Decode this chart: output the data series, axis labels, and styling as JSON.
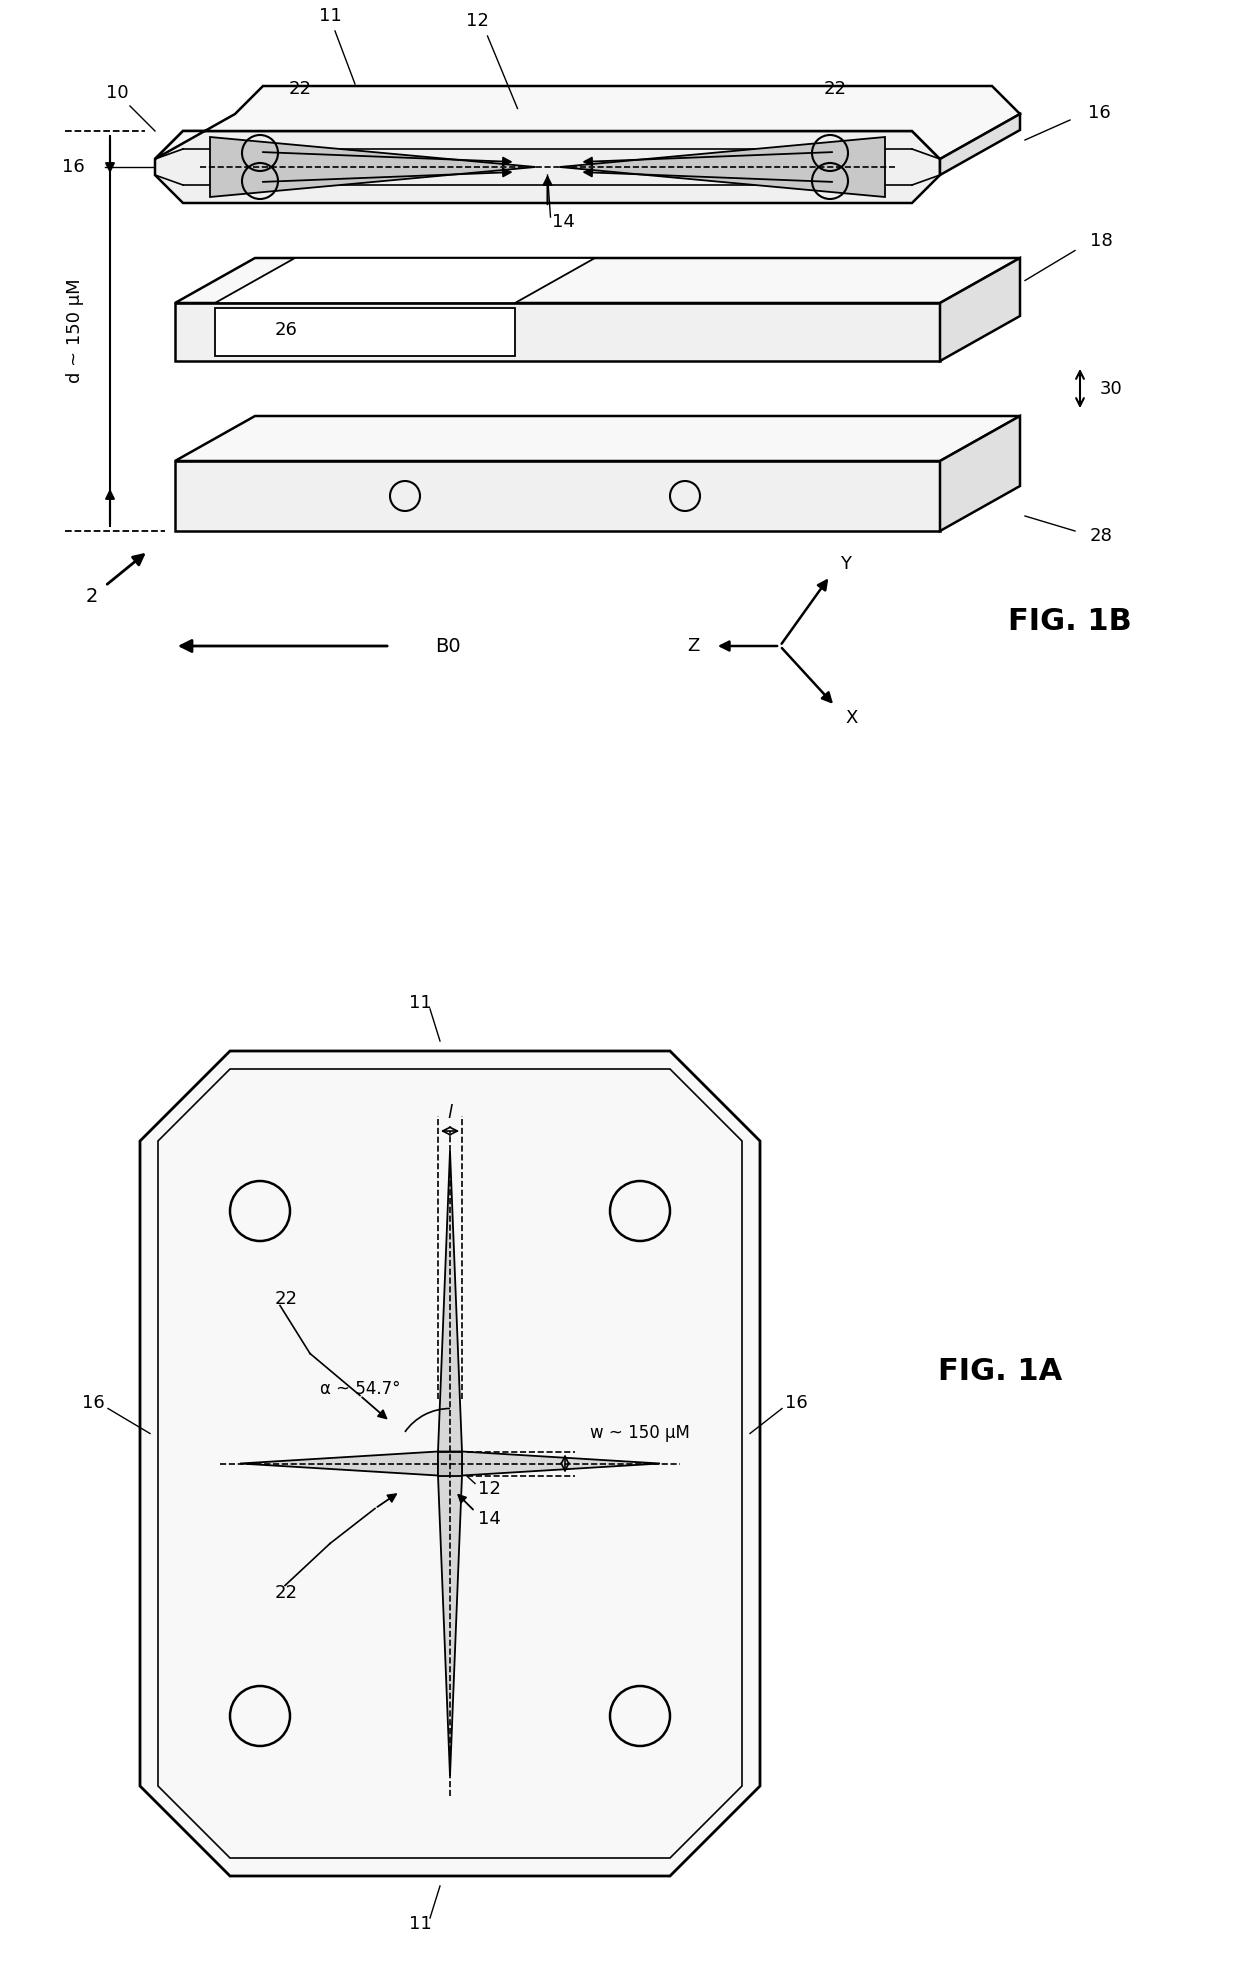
{
  "bg_color": "#ffffff",
  "fig_width": 12.4,
  "fig_height": 19.71,
  "fig1b_label": "FIG. 1B",
  "fig1a_label": "FIG. 1A",
  "d_label": "d ~ 150 μM",
  "w_label": "w ~ 150 μM",
  "a_label": "α ~ 54.7°",
  "l_label": "l",
  "B0_label": "B0"
}
